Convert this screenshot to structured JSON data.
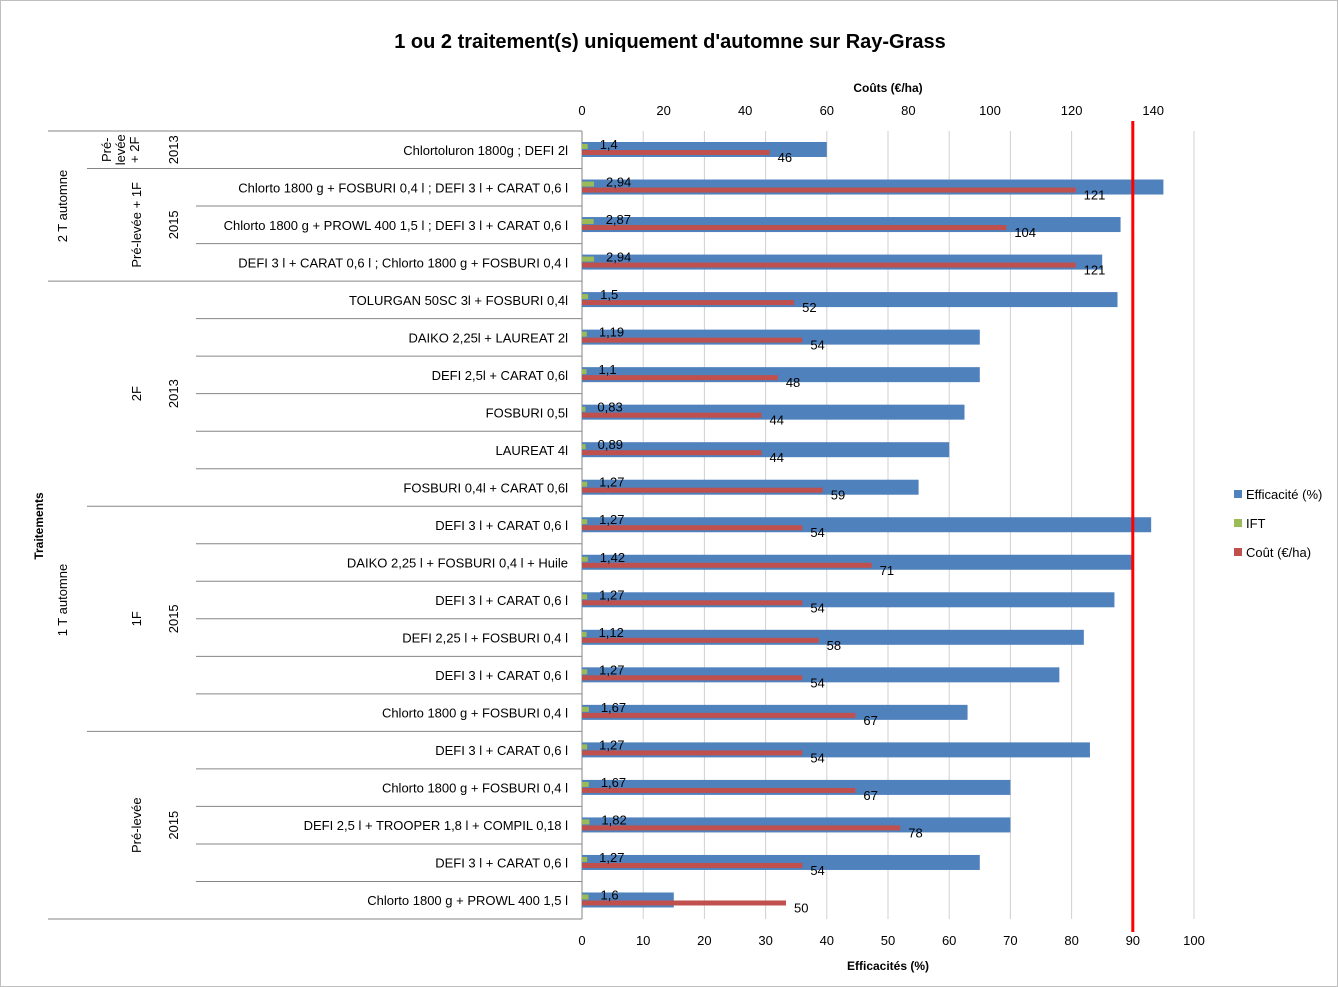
{
  "chart_data": {
    "type": "bar",
    "orientation": "horizontal",
    "title": "1 ou 2 traitement(s) uniquement d'automne sur Ray-Grass",
    "xlabel": "Efficacités (%)",
    "x2label": "Coûts (€/ha)",
    "ylabel": "Traitements",
    "xlim": [
      0,
      100
    ],
    "x_ticks": [
      "0",
      "10",
      "20",
      "30",
      "40",
      "50",
      "60",
      "70",
      "80",
      "90",
      "100"
    ],
    "x2lim": [
      0,
      150
    ],
    "x2_ticks": [
      "0",
      "20",
      "40",
      "60",
      "80",
      "100",
      "120",
      "140"
    ],
    "grid": true,
    "legend_position": "right",
    "reference_line": {
      "value": 90,
      "axis": "x",
      "color": "#ff0000"
    },
    "categories": [
      "Chlortoluron 1800g ; DEFI 2l",
      "Chlorto 1800 g + FOSBURI 0,4 l ; DEFI 3 l + CARAT 0,6 l",
      "Chlorto 1800 g + PROWL 400 1,5 l ; DEFI 3 l + CARAT 0,6 l",
      "DEFI 3 l + CARAT 0,6 l ; Chlorto 1800 g + FOSBURI 0,4 l",
      "TOLURGAN 50SC 3l + FOSBURI 0,4l",
      "DAIKO 2,25l + LAUREAT 2l",
      "DEFI 2,5l + CARAT 0,6l",
      "FOSBURI 0,5l",
      "LAUREAT 4l",
      "FOSBURI 0,4l + CARAT 0,6l",
      "DEFI 3 l + CARAT 0,6 l",
      "DAIKO 2,25 l + FOSBURI 0,4 l + Huile",
      "DEFI 3 l + CARAT 0,6 l",
      "DEFI 2,25 l + FOSBURI 0,4 l",
      "DEFI 3 l + CARAT 0,6 l",
      "Chlorto 1800 g + FOSBURI 0,4 l",
      "DEFI 3 l + CARAT 0,6 l",
      "Chlorto 1800 g + FOSBURI 0,4 l",
      "DEFI 2,5 l + TROOPER 1,8 l + COMPIL 0,18 l",
      "DEFI 3 l + CARAT 0,6 l",
      "Chlorto 1800 g + PROWL 400 1,5 l"
    ],
    "series": [
      {
        "name": "Efficacité (%)",
        "axis": "x",
        "color": "#4f81bd",
        "values": [
          40,
          95,
          88,
          85,
          87.5,
          65,
          65,
          62.5,
          60,
          55,
          93,
          90,
          87,
          82,
          78,
          63,
          83,
          70,
          70,
          65,
          15
        ]
      },
      {
        "name": "IFT",
        "axis": "x2",
        "color": "#9bbb59",
        "values": [
          1.4,
          2.94,
          2.87,
          2.94,
          1.5,
          1.19,
          1.1,
          0.83,
          0.89,
          1.27,
          1.27,
          1.42,
          1.27,
          1.12,
          1.27,
          1.67,
          1.27,
          1.67,
          1.82,
          1.27,
          1.6
        ],
        "labels": [
          "1,4",
          "2,94",
          "2,87",
          "2,94",
          "1,5",
          "1,19",
          "1,1",
          "0,83",
          "0,89",
          "1,27",
          "1,27",
          "1,42",
          "1,27",
          "1,12",
          "1,27",
          "1,67",
          "1,27",
          "1,67",
          "1,82",
          "1,27",
          "1,6"
        ]
      },
      {
        "name": "Coût (€/ha)",
        "axis": "x2",
        "color": "#c0504d",
        "values": [
          46,
          121,
          104,
          121,
          52,
          54,
          48,
          44,
          44,
          59,
          54,
          71,
          54,
          58,
          54,
          67,
          54,
          67,
          78,
          54,
          50
        ],
        "labels": [
          "46",
          "121",
          "104",
          "121",
          "52",
          "54",
          "48",
          "44",
          "44",
          "59",
          "54",
          "71",
          "54",
          "58",
          "54",
          "67",
          "54",
          "67",
          "78",
          "54",
          "50"
        ]
      }
    ],
    "groups": {
      "level1": [
        {
          "label": "2 T automne",
          "start": 0,
          "end": 3
        },
        {
          "label": "1 T automne",
          "start": 4,
          "end": 20
        }
      ],
      "level2": [
        {
          "label": "Pré-levée + 2F",
          "lines": [
            "Pré-",
            "levée",
            "+ 2F"
          ],
          "start": 0,
          "end": 0
        },
        {
          "label": "Pré-levée + 1F",
          "lines": [
            "Pré-levée + 1F"
          ],
          "start": 1,
          "end": 3
        },
        {
          "label": "2F",
          "lines": [
            "2F"
          ],
          "start": 4,
          "end": 9
        },
        {
          "label": "1F",
          "lines": [
            "1F"
          ],
          "start": 10,
          "end": 15
        },
        {
          "label": "Pré-levée",
          "lines": [
            "Pré-levée"
          ],
          "start": 16,
          "end": 20
        }
      ],
      "level3": [
        {
          "label": "2013",
          "start": 0,
          "end": 0
        },
        {
          "label": "2015",
          "start": 1,
          "end": 3
        },
        {
          "label": "2013",
          "start": 4,
          "end": 9
        },
        {
          "label": "2015",
          "start": 10,
          "end": 15
        },
        {
          "label": "2015",
          "start": 16,
          "end": 20
        }
      ]
    }
  }
}
